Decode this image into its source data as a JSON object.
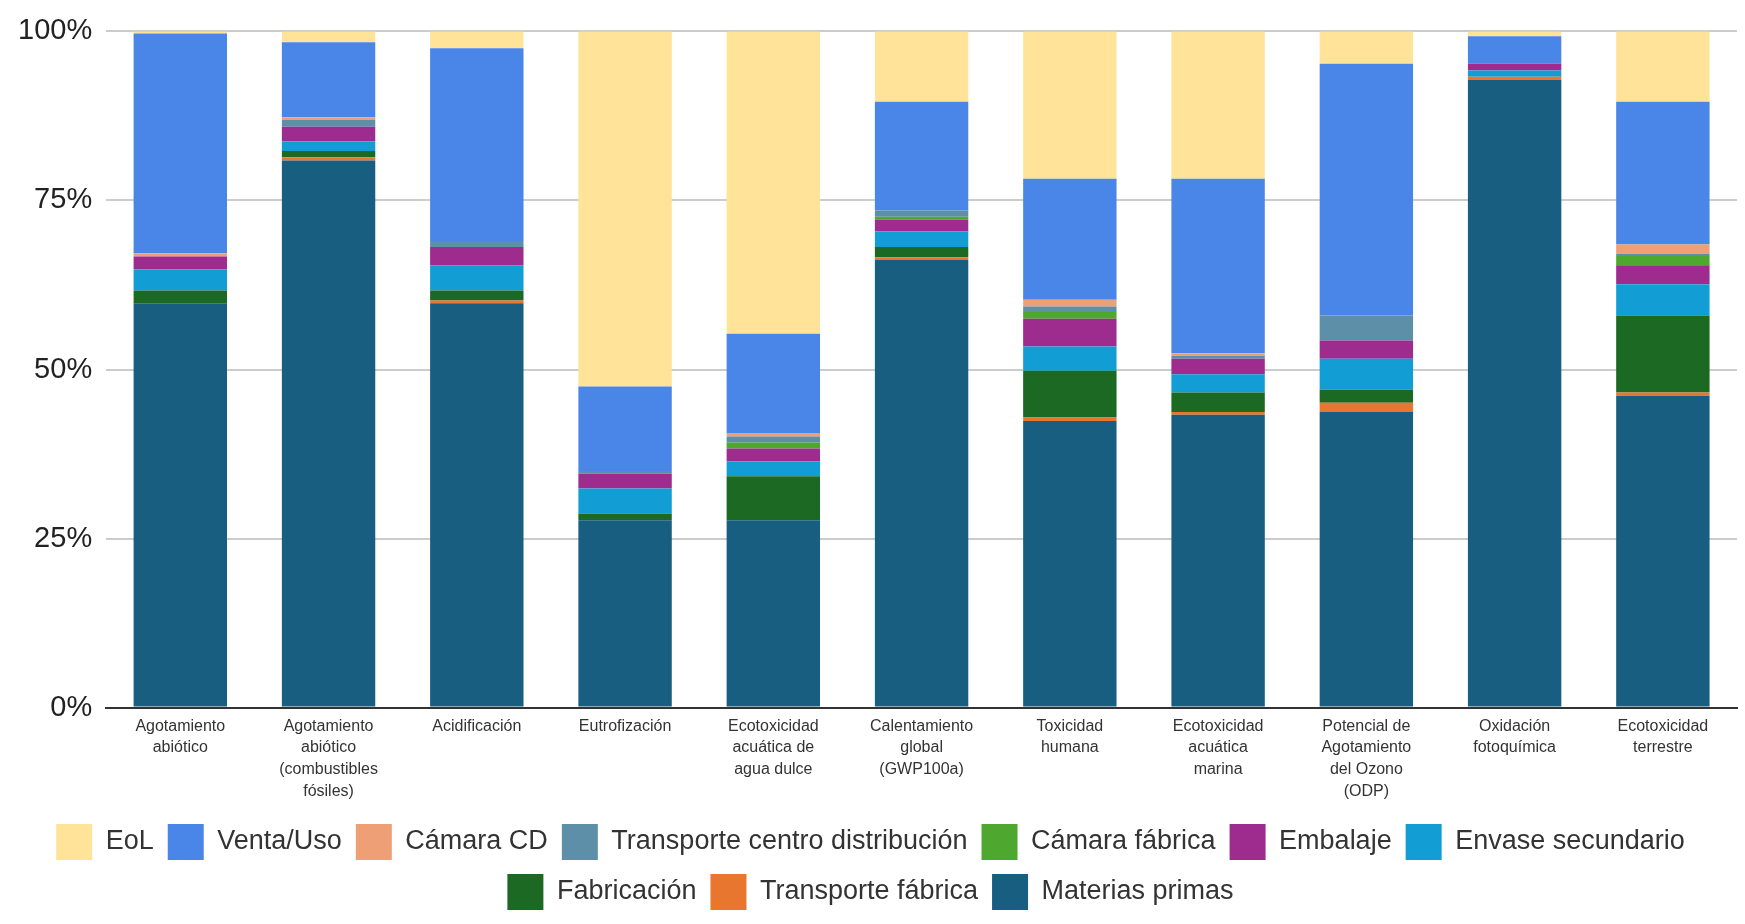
{
  "chart_data": {
    "type": "bar",
    "stacked": true,
    "categories": [
      "Agotamiento abiótico",
      "Agotamiento abiótico (combustibles fósiles)",
      "Acidificación",
      "Eutrofización",
      "Ecotoxicidad acuática de agua dulce",
      "Calentamiento global (GWP100a)",
      "Toxicidad humana",
      "Ecotoxicidad acuática marina",
      "Potencial de Agotamiento del Ozono (ODP)",
      "Oxidación fotoquímica",
      "Ecotoxicidad terrestre"
    ],
    "series": [
      {
        "name": "Materias primas",
        "color": "#175e81",
        "values": [
          59.8,
          80.9,
          59.8,
          27.7,
          27.7,
          66.2,
          42.4,
          43.3,
          43.7,
          92.8,
          46.1
        ]
      },
      {
        "name": "Transporte fábrica",
        "color": "#e8762e",
        "values": [
          0,
          0.5,
          0.4,
          0,
          0,
          0.4,
          0.5,
          0.4,
          1.4,
          0.5,
          0.5
        ]
      },
      {
        "name": "Fabricación",
        "color": "#1c6923",
        "values": [
          1.9,
          0.9,
          1.5,
          1.0,
          6.5,
          1.5,
          6.9,
          2.9,
          1.9,
          0,
          11.4
        ]
      },
      {
        "name": "Envase secundario",
        "color": "#129ed5",
        "values": [
          3.1,
          1.4,
          3.7,
          3.7,
          2.2,
          2.3,
          3.6,
          2.7,
          4.6,
          0.9,
          4.6
        ]
      },
      {
        "name": "Embalaje",
        "color": "#9e2b8e",
        "values": [
          1.9,
          2.2,
          2.7,
          2.2,
          1.9,
          1.8,
          4.1,
          2.3,
          2.7,
          1.0,
          2.8
        ]
      },
      {
        "name": "Cámara fábrica",
        "color": "#4ea72e",
        "values": [
          0,
          0,
          0,
          0,
          0.9,
          0.4,
          1.0,
          0,
          0,
          0,
          1.4
        ]
      },
      {
        "name": "Transporte centro distribución",
        "color": "#5d90a8",
        "values": [
          0,
          1.0,
          0.9,
          0.4,
          0.9,
          0.9,
          0.8,
          0.4,
          3.7,
          0,
          0.3
        ]
      },
      {
        "name": "Cámara CD",
        "color": "#ef9f76",
        "values": [
          0.5,
          0.4,
          0,
          0,
          0.5,
          0,
          1.0,
          0.4,
          0,
          0,
          1.4
        ]
      },
      {
        "name": "Venta/Uso",
        "color": "#4a86e8",
        "values": [
          32.5,
          11.1,
          28.5,
          12.5,
          14.7,
          16.1,
          17.9,
          25.8,
          37.2,
          4.1,
          21.1
        ]
      },
      {
        "name": "EoL",
        "color": "#fee399",
        "values": [
          0.3,
          1.6,
          2.5,
          52.5,
          44.7,
          10.4,
          21.8,
          21.8,
          4.8,
          0.7,
          10.4
        ]
      }
    ],
    "ylim": [
      0,
      100
    ],
    "yticks": [
      {
        "value": 0,
        "label": "0%"
      },
      {
        "value": 25,
        "label": "25%"
      },
      {
        "value": 50,
        "label": "50%"
      },
      {
        "value": 75,
        "label": "75%"
      },
      {
        "value": 100,
        "label": "100%"
      }
    ],
    "grid": "y",
    "legend": "bottom"
  }
}
